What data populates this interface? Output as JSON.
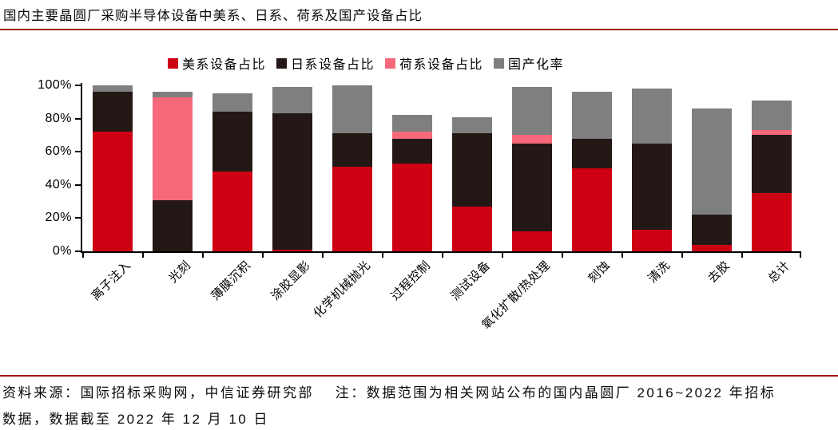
{
  "title": "国内主要晶圆厂采购半导体设备中美系、日系、荷系及国产设备占比",
  "footer": {
    "line1": "资料来源：国际招标采购网，中信证券研究部　 注：数据范围为相关网站公布的国内晶圆厂 2016~2022 年招标",
    "line2": "数据，数据截至 2022 年 12 月 10 日"
  },
  "colors": {
    "us_red": "#cd0014",
    "jp_dark": "#231815",
    "nl_pink": "#f5697a",
    "domestic_gray": "#7f7f7f",
    "rule_red": "#a40000",
    "axis_black": "#000000"
  },
  "chart_data": {
    "type": "bar",
    "stacked": true,
    "title": "国内主要晶圆厂采购半导体设备中美系、日系、荷系及国产设备占比",
    "xlabel": "",
    "ylabel": "",
    "ylim": [
      0,
      100
    ],
    "yticks": [
      "0%",
      "20%",
      "40%",
      "60%",
      "80%",
      "100%"
    ],
    "grid": false,
    "legend_position": "top",
    "categories": [
      "离子注入",
      "光刻",
      "薄膜沉积",
      "涂胶显影",
      "化学机械抛光",
      "过程控制",
      "测试设备",
      "氧化扩散/热处理",
      "刻蚀",
      "清洗",
      "去胶",
      "总计"
    ],
    "series": [
      {
        "name": "美系设备占比",
        "color": "#cd0014",
        "values": [
          72,
          0,
          48,
          1,
          51,
          53,
          27,
          12,
          50,
          13,
          4,
          35
        ]
      },
      {
        "name": "日系设备占比",
        "color": "#231815",
        "values": [
          24,
          31,
          36,
          82,
          20,
          15,
          44,
          53,
          18,
          52,
          18,
          35
        ]
      },
      {
        "name": "荷系设备占比",
        "color": "#f5697a",
        "values": [
          0,
          62,
          0,
          0,
          0,
          4,
          0,
          5,
          0,
          0,
          0,
          3
        ]
      },
      {
        "name": "国产化率",
        "color": "#7f7f7f",
        "values": [
          4,
          3,
          11,
          16,
          29,
          10,
          10,
          29,
          28,
          33,
          64,
          18
        ]
      }
    ]
  }
}
